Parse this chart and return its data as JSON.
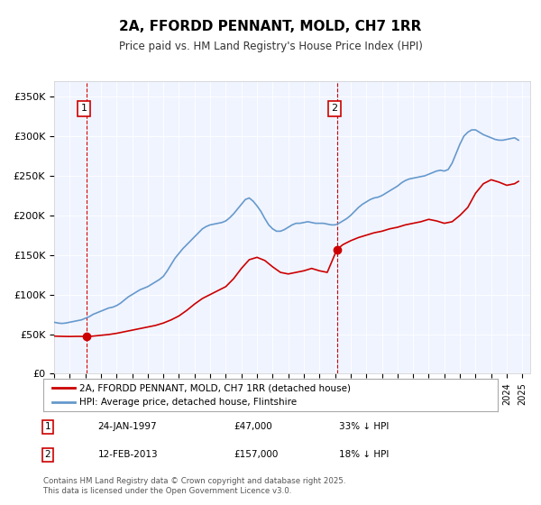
{
  "title": "2A, FFORDD PENNANT, MOLD, CH7 1RR",
  "subtitle": "Price paid vs. HM Land Registry's House Price Index (HPI)",
  "xlim": [
    1995,
    2025.5
  ],
  "ylim": [
    0,
    370000
  ],
  "yticks": [
    0,
    50000,
    100000,
    150000,
    200000,
    250000,
    300000,
    350000
  ],
  "ytick_labels": [
    "£0",
    "£50K",
    "£100K",
    "£150K",
    "£200K",
    "£250K",
    "£300K",
    "£350K"
  ],
  "xticks": [
    1995,
    1996,
    1997,
    1998,
    1999,
    2000,
    2001,
    2002,
    2003,
    2004,
    2005,
    2006,
    2007,
    2008,
    2009,
    2010,
    2011,
    2012,
    2013,
    2014,
    2015,
    2016,
    2017,
    2018,
    2019,
    2020,
    2021,
    2022,
    2023,
    2024,
    2025
  ],
  "annotation1": {
    "x": 1997.07,
    "label": "1",
    "date": "24-JAN-1997",
    "price": "£47,000",
    "pct": "33% ↓ HPI",
    "price_val": 47000
  },
  "annotation2": {
    "x": 2013.12,
    "label": "2",
    "date": "12-FEB-2013",
    "price": "£157,000",
    "pct": "18% ↓ HPI",
    "price_val": 157000
  },
  "legend_line1": "2A, FFORDD PENNANT, MOLD, CH7 1RR (detached house)",
  "legend_line2": "HPI: Average price, detached house, Flintshire",
  "red_color": "#cc0000",
  "blue_color": "#6699cc",
  "background_color": "#f0f4ff",
  "footer": "Contains HM Land Registry data © Crown copyright and database right 2025.\nThis data is licensed under the Open Government Licence v3.0.",
  "hpi_data": {
    "years": [
      1995.0,
      1995.25,
      1995.5,
      1995.75,
      1996.0,
      1996.25,
      1996.5,
      1996.75,
      1997.0,
      1997.25,
      1997.5,
      1997.75,
      1998.0,
      1998.25,
      1998.5,
      1998.75,
      1999.0,
      1999.25,
      1999.5,
      1999.75,
      2000.0,
      2000.25,
      2000.5,
      2000.75,
      2001.0,
      2001.25,
      2001.5,
      2001.75,
      2002.0,
      2002.25,
      2002.5,
      2002.75,
      2003.0,
      2003.25,
      2003.5,
      2003.75,
      2004.0,
      2004.25,
      2004.5,
      2004.75,
      2005.0,
      2005.25,
      2005.5,
      2005.75,
      2006.0,
      2006.25,
      2006.5,
      2006.75,
      2007.0,
      2007.25,
      2007.5,
      2007.75,
      2008.0,
      2008.25,
      2008.5,
      2008.75,
      2009.0,
      2009.25,
      2009.5,
      2009.75,
      2010.0,
      2010.25,
      2010.5,
      2010.75,
      2011.0,
      2011.25,
      2011.5,
      2011.75,
      2012.0,
      2012.25,
      2012.5,
      2012.75,
      2013.0,
      2013.25,
      2013.5,
      2013.75,
      2014.0,
      2014.25,
      2014.5,
      2014.75,
      2015.0,
      2015.25,
      2015.5,
      2015.75,
      2016.0,
      2016.25,
      2016.5,
      2016.75,
      2017.0,
      2017.25,
      2017.5,
      2017.75,
      2018.0,
      2018.25,
      2018.5,
      2018.75,
      2019.0,
      2019.25,
      2019.5,
      2019.75,
      2020.0,
      2020.25,
      2020.5,
      2020.75,
      2021.0,
      2021.25,
      2021.5,
      2021.75,
      2022.0,
      2022.25,
      2022.5,
      2022.75,
      2023.0,
      2023.25,
      2023.5,
      2023.75,
      2024.0,
      2024.25,
      2024.5,
      2024.75
    ],
    "values": [
      65000,
      64000,
      63500,
      64000,
      65000,
      66000,
      67000,
      68000,
      70000,
      72000,
      75000,
      77000,
      79000,
      81000,
      83000,
      84000,
      86000,
      89000,
      93000,
      97000,
      100000,
      103000,
      106000,
      108000,
      110000,
      113000,
      116000,
      119000,
      123000,
      130000,
      138000,
      146000,
      152000,
      158000,
      163000,
      168000,
      173000,
      178000,
      183000,
      186000,
      188000,
      189000,
      190000,
      191000,
      193000,
      197000,
      202000,
      208000,
      214000,
      220000,
      222000,
      218000,
      212000,
      205000,
      196000,
      188000,
      183000,
      180000,
      180000,
      182000,
      185000,
      188000,
      190000,
      190000,
      191000,
      192000,
      191000,
      190000,
      190000,
      190000,
      189000,
      188000,
      188000,
      190000,
      193000,
      196000,
      200000,
      205000,
      210000,
      214000,
      217000,
      220000,
      222000,
      223000,
      225000,
      228000,
      231000,
      234000,
      237000,
      241000,
      244000,
      246000,
      247000,
      248000,
      249000,
      250000,
      252000,
      254000,
      256000,
      257000,
      256000,
      258000,
      266000,
      278000,
      290000,
      300000,
      305000,
      308000,
      308000,
      305000,
      302000,
      300000,
      298000,
      296000,
      295000,
      295000,
      296000,
      297000,
      298000,
      295000
    ]
  },
  "red_data": {
    "years": [
      1995.0,
      1995.5,
      1996.0,
      1996.5,
      1997.07,
      1997.5,
      1998.0,
      1998.5,
      1999.0,
      1999.5,
      2000.0,
      2000.5,
      2001.0,
      2001.5,
      2002.0,
      2002.5,
      2003.0,
      2003.5,
      2004.0,
      2004.5,
      2005.0,
      2005.5,
      2006.0,
      2006.5,
      2007.0,
      2007.5,
      2008.0,
      2008.5,
      2009.0,
      2009.5,
      2010.0,
      2010.5,
      2011.0,
      2011.5,
      2012.0,
      2012.5,
      2013.12,
      2013.5,
      2014.0,
      2014.5,
      2015.0,
      2015.5,
      2016.0,
      2016.5,
      2017.0,
      2017.5,
      2018.0,
      2018.5,
      2019.0,
      2019.5,
      2020.0,
      2020.5,
      2021.0,
      2021.5,
      2022.0,
      2022.5,
      2023.0,
      2023.5,
      2024.0,
      2024.5,
      2024.75
    ],
    "values": [
      47500,
      47200,
      47000,
      47200,
      47000,
      47500,
      48500,
      49500,
      51000,
      53000,
      55000,
      57000,
      59000,
      61000,
      64000,
      68000,
      73000,
      80000,
      88000,
      95000,
      100000,
      105000,
      110000,
      120000,
      133000,
      144000,
      147000,
      143000,
      135000,
      128000,
      126000,
      128000,
      130000,
      133000,
      130000,
      128000,
      157000,
      163000,
      168000,
      172000,
      175000,
      178000,
      180000,
      183000,
      185000,
      188000,
      190000,
      192000,
      195000,
      193000,
      190000,
      192000,
      200000,
      210000,
      228000,
      240000,
      245000,
      242000,
      238000,
      240000,
      243000
    ]
  }
}
